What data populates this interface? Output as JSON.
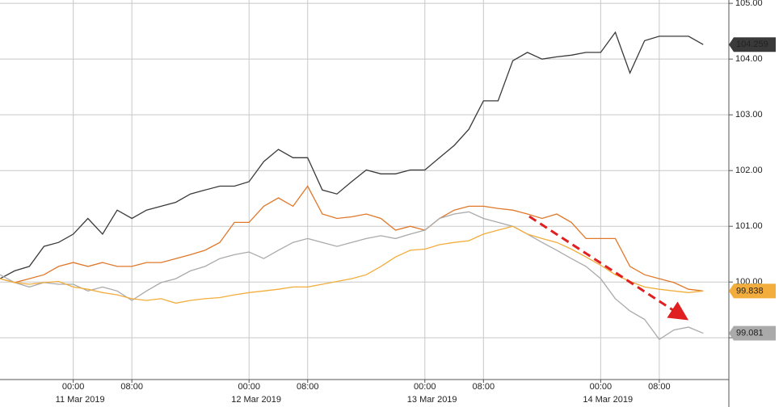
{
  "chart_data": {
    "type": "line",
    "x": [
      -10,
      -8,
      -6,
      -4,
      -2,
      0,
      2,
      4,
      6,
      8,
      10,
      12,
      14,
      16,
      18,
      20,
      22,
      24,
      26,
      28,
      30,
      32,
      34,
      36,
      38,
      40,
      42,
      44,
      46,
      48,
      50,
      52,
      54,
      56,
      58,
      60,
      62,
      64,
      66,
      68,
      70,
      72,
      74,
      76,
      78,
      80,
      82,
      84,
      86
    ],
    "xlim": [
      -10,
      89.5
    ],
    "xticks": [
      {
        "value": 0,
        "label": "00:00"
      },
      {
        "value": 8,
        "label": "08:00"
      },
      {
        "value": 24,
        "label": "00:00"
      },
      {
        "value": 32,
        "label": "08:00"
      },
      {
        "value": 48,
        "label": "00:00"
      },
      {
        "value": 56,
        "label": "08:00"
      },
      {
        "value": 72,
        "label": "00:00"
      },
      {
        "value": 80,
        "label": "08:00"
      }
    ],
    "day_ticks": [
      {
        "value": 0,
        "label": "11 Mar 2019"
      },
      {
        "value": 24,
        "label": "12 Mar 2019"
      },
      {
        "value": 48,
        "label": "13 Mar 2019"
      },
      {
        "value": 72,
        "label": "14 Mar 2019"
      }
    ],
    "ylim": [
      98.25,
      105.06
    ],
    "yticks": [
      {
        "value": 99,
        "label": "99.00"
      },
      {
        "value": 100,
        "label": "100.00"
      },
      {
        "value": 101,
        "label": "101.00"
      },
      {
        "value": 102,
        "label": "102.00"
      },
      {
        "value": 103,
        "label": "103.00"
      },
      {
        "value": 104,
        "label": "104.00"
      },
      {
        "value": 105,
        "label": "105.00"
      }
    ],
    "grid": true,
    "series": [
      {
        "color": "#3a3a3a",
        "last_value": 104.259,
        "values": [
          100.06,
          100.2,
          100.28,
          100.64,
          100.71,
          100.86,
          101.14,
          100.86,
          101.29,
          101.14,
          101.29,
          101.36,
          101.43,
          101.58,
          101.65,
          101.72,
          101.72,
          101.8,
          102.16,
          102.38,
          102.23,
          102.23,
          101.65,
          101.58,
          101.8,
          102.01,
          101.94,
          101.94,
          102.01,
          102.01,
          102.23,
          102.45,
          102.74,
          103.25,
          103.25,
          103.97,
          104.12,
          104.0,
          104.04,
          104.07,
          104.12,
          104.12,
          104.48,
          103.75,
          104.33,
          104.41,
          104.41,
          104.41,
          104.26
        ]
      },
      {
        "color": "#e0782a",
        "values": [
          100.06,
          99.99,
          100.06,
          100.13,
          100.28,
          100.35,
          100.28,
          100.35,
          100.28,
          100.28,
          100.35,
          100.35,
          100.42,
          100.49,
          100.57,
          100.71,
          101.07,
          101.07,
          101.36,
          101.51,
          101.36,
          101.72,
          101.22,
          101.14,
          101.17,
          101.22,
          101.14,
          100.93,
          101.0,
          100.93,
          101.14,
          101.29,
          101.36,
          101.36,
          101.32,
          101.29,
          101.22,
          101.14,
          101.22,
          101.07,
          100.78,
          100.78,
          100.78,
          100.28,
          100.13,
          100.06,
          99.99,
          99.87,
          99.84
        ]
      },
      {
        "color": "#aaaaaa",
        "last_value": 99.081,
        "values": [
          100.13,
          99.99,
          99.91,
          99.99,
          99.96,
          99.96,
          99.84,
          99.91,
          99.84,
          99.67,
          99.84,
          99.99,
          100.06,
          100.2,
          100.28,
          100.42,
          100.49,
          100.54,
          100.42,
          100.57,
          100.71,
          100.78,
          100.71,
          100.64,
          100.71,
          100.78,
          100.83,
          100.78,
          100.86,
          100.93,
          101.14,
          101.22,
          101.26,
          101.14,
          101.07,
          101.0,
          100.86,
          100.71,
          100.57,
          100.42,
          100.28,
          100.06,
          99.7,
          99.48,
          99.33,
          98.97,
          99.14,
          99.19,
          99.08
        ]
      },
      {
        "color": "#f2ad3c",
        "last_value": 99.838,
        "values": [
          100.06,
          99.99,
          99.96,
          99.99,
          100.01,
          99.91,
          99.87,
          99.81,
          99.77,
          99.7,
          99.67,
          99.7,
          99.62,
          99.67,
          99.7,
          99.72,
          99.77,
          99.81,
          99.84,
          99.87,
          99.91,
          99.91,
          99.96,
          100.01,
          100.06,
          100.13,
          100.28,
          100.45,
          100.57,
          100.59,
          100.67,
          100.71,
          100.74,
          100.86,
          100.93,
          101.0,
          100.86,
          100.78,
          100.71,
          100.59,
          100.45,
          100.3,
          100.13,
          100.01,
          99.91,
          99.87,
          99.84,
          99.81,
          99.84
        ]
      }
    ]
  }
}
